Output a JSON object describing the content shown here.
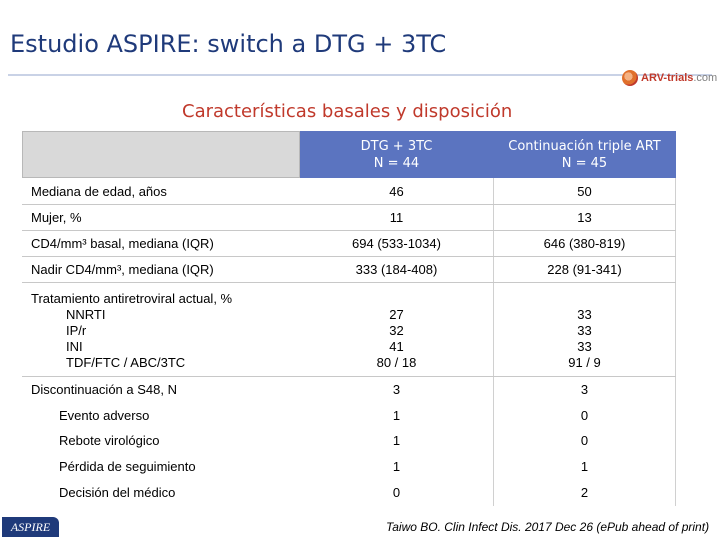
{
  "slide": {
    "title": "Estudio ASPIRE: switch a DTG + 3TC",
    "subtitle": "Características basales y disposición",
    "logo_text": "ARV-trials",
    "logo_domain": ".com",
    "footer_badge": "ASPIRE",
    "citation": "Taiwo BO. Clin Infect Dis. 2017 Dec 26 (ePub ahead of print)"
  },
  "table": {
    "col1": {
      "line1": "DTG + 3TC",
      "line2": "N = 44"
    },
    "col2": {
      "line1": "Continuación triple ART",
      "line2": "N = 45"
    },
    "rows": [
      {
        "label": "Mediana de edad, años",
        "v1": "46",
        "v2": "50"
      },
      {
        "label": "Mujer, %",
        "v1": "11",
        "v2": "13"
      },
      {
        "label": "CD4/mm³  basal, mediana (IQR)",
        "v1": "694 (533-1034)",
        "v2": "646 (380-819)"
      },
      {
        "label": "Nadir CD4/mm³, mediana (IQR)",
        "v1": "333 (184-408)",
        "v2": "228 (91-341)"
      }
    ],
    "art": {
      "label": "Tratamiento antiretroviral actual, %",
      "sub": [
        "NNRTI",
        "IP/r",
        "INI",
        "TDF/FTC / ABC/3TC"
      ],
      "v1": [
        "27",
        "32",
        "41",
        "80 / 18"
      ],
      "v2": [
        "33",
        "33",
        "33",
        "91 / 9"
      ]
    },
    "disc": {
      "label": "Discontinuación a S48, N",
      "v1": "3",
      "v2": "3"
    },
    "disc_rows": [
      {
        "label": "Evento adverso",
        "v1": "1",
        "v2": "0"
      },
      {
        "label": "Rebote virológico",
        "v1": "1",
        "v2": "0"
      },
      {
        "label": "Pérdida de seguimiento",
        "v1": "1",
        "v2": "1"
      },
      {
        "label": "Decisión del médico",
        "v1": "0",
        "v2": "2"
      }
    ]
  },
  "colors": {
    "title": "#1f3a7a",
    "subtitle": "#c0392b",
    "header_bg": "#5b74c0"
  }
}
